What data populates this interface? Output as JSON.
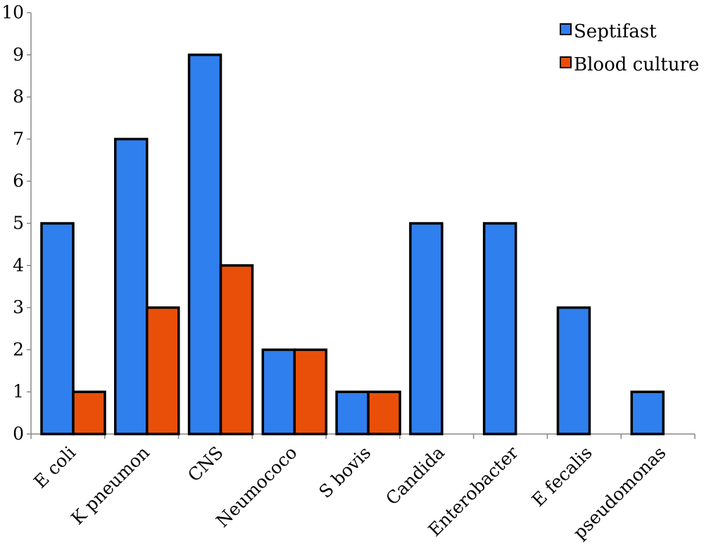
{
  "chart_data": {
    "type": "bar",
    "title": "",
    "xlabel": "",
    "ylabel": "",
    "categories": [
      "E coli",
      "K pneumon",
      "CNS",
      "Neumococo",
      "S bovis",
      "Candida",
      "Enterobacter",
      "E fecalis",
      "pseudomonas"
    ],
    "series": [
      {
        "name": "Septifast",
        "color": "#2f7fef",
        "values": [
          5,
          7,
          9,
          2,
          1,
          5,
          5,
          3,
          1
        ]
      },
      {
        "name": "Blood culture",
        "color": "#ea4f0a",
        "values": [
          1,
          3,
          4,
          2,
          1,
          0,
          0,
          0,
          0
        ]
      }
    ],
    "ylim": [
      0,
      10
    ],
    "yticks": [
      0,
      1,
      2,
      3,
      4,
      5,
      6,
      7,
      8,
      9,
      10
    ],
    "grid": false,
    "legend": "top-right"
  }
}
